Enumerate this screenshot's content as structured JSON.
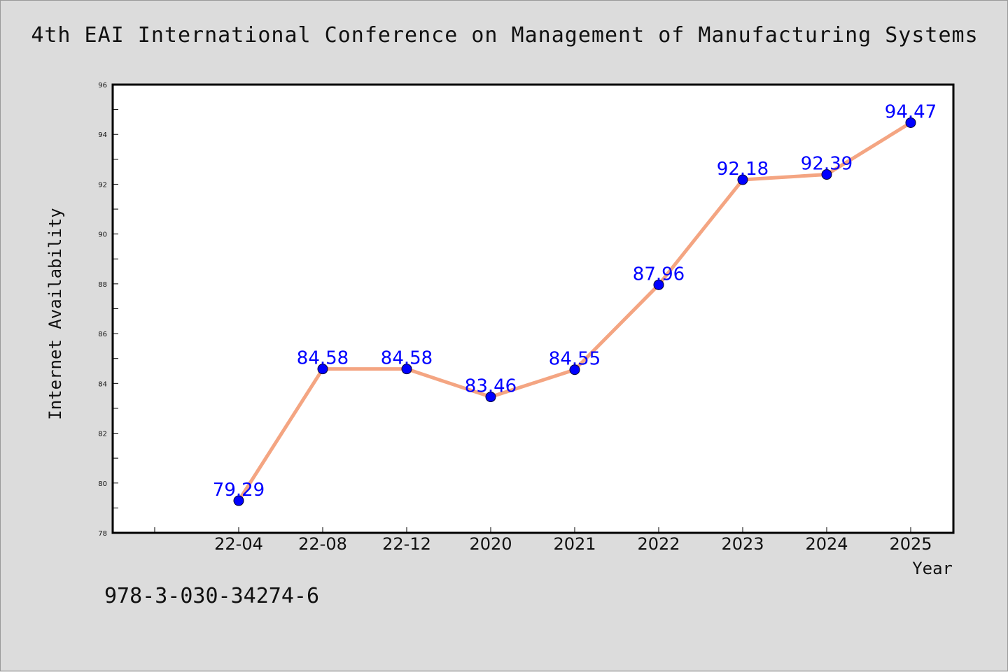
{
  "page": {
    "title": "4th EAI International Conference on Management of Manufacturing Systems",
    "footer_text": "978-3-030-34274-6"
  },
  "chart_data": {
    "type": "line",
    "title": "4th EAI International Conference on Management of Manufacturing Systems",
    "xlabel": "Year",
    "ylabel": "Internet Availability",
    "categories": [
      "22-04",
      "22-08",
      "22-12",
      "2020",
      "2021",
      "2022",
      "2023",
      "2024",
      "2025"
    ],
    "values": [
      79.29,
      84.58,
      84.58,
      83.46,
      84.55,
      87.96,
      92.18,
      92.39,
      94.47
    ],
    "data_labels": [
      "79.29",
      "84.58",
      "84.58",
      "83.46",
      "84.55",
      "87.96",
      "92.18",
      "92.39",
      "94.47"
    ],
    "ylim": [
      78,
      96
    ],
    "yticks": [
      78,
      80,
      82,
      84,
      86,
      88,
      90,
      92,
      94,
      96
    ],
    "grid": false,
    "colors": {
      "line": "#f4a582",
      "marker": "#0000ff",
      "label": "#0000ff"
    }
  }
}
